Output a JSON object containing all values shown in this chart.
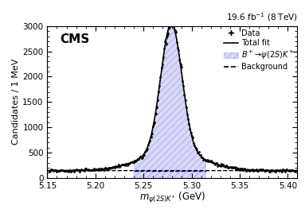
{
  "title": "19.6 fb⁻¹ (8 TeV)",
  "cms_label": "CMS",
  "ylabel": "Candidates / 1 MeV",
  "xlim": [
    5.15,
    5.41
  ],
  "ylim": [
    0,
    3000
  ],
  "yticks": [
    0,
    500,
    1000,
    1500,
    2000,
    2500,
    3000
  ],
  "xticks": [
    5.15,
    5.2,
    5.25,
    5.3,
    5.35,
    5.4
  ],
  "signal_peak": 5.279,
  "signal_sigma_narrow": 0.011,
  "signal_sigma_wide": 0.033,
  "signal_amplitude_narrow": 2550,
  "signal_amplitude_wide": 350,
  "bg_level": 145,
  "x_range_start": 5.15,
  "x_range_end": 5.41,
  "fill_color": "#0000cc",
  "fill_alpha": 0.15,
  "hatch_pattern": "////",
  "signal_region_start": 5.24,
  "signal_region_end": 5.315,
  "bg_line_color": "#0000cc",
  "n_data_points": 260,
  "data_seed": 12
}
